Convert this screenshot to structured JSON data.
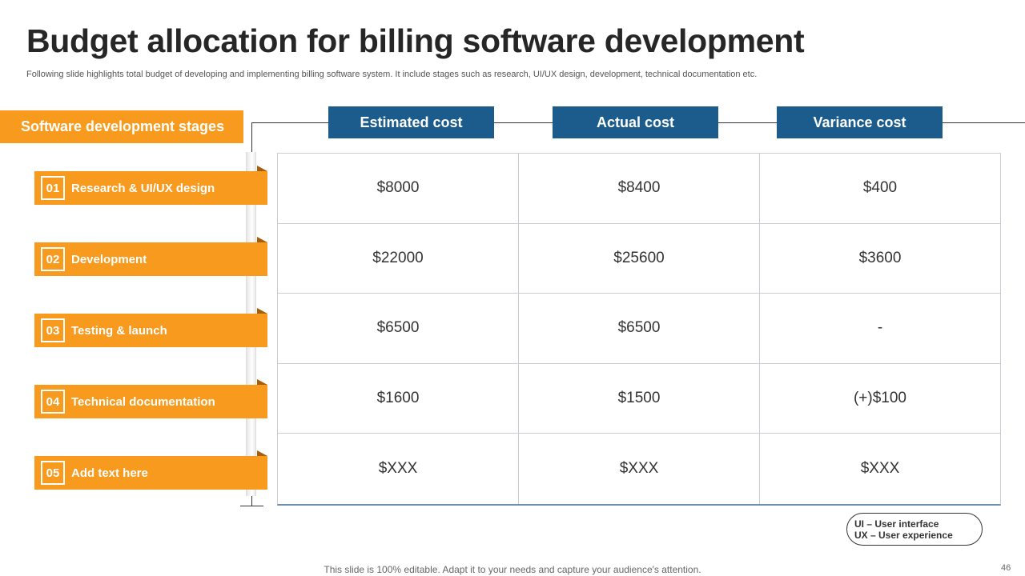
{
  "title": "Budget allocation for billing software development",
  "subtitle": "Following slide highlights total budget of developing and implementing billing software system. It include stages such as research, UI/UX design, development, technical documentation etc.",
  "stages_header": "Software development stages",
  "stages": [
    {
      "num": "01",
      "label": "Research & UI/UX design"
    },
    {
      "num": "02",
      "label": "Development"
    },
    {
      "num": "03",
      "label": "Testing & launch"
    },
    {
      "num": "04",
      "label": "Technical documentation"
    },
    {
      "num": "05",
      "label": "Add text here"
    }
  ],
  "columns": [
    "Estimated cost",
    "Actual cost",
    "Variance cost"
  ],
  "rows": [
    [
      "$8000",
      "$8400",
      "$400"
    ],
    [
      "$22000",
      "$25600",
      "$3600"
    ],
    [
      "$6500",
      "$6500",
      "-"
    ],
    [
      "$1600",
      "$1500",
      "(+)$100"
    ],
    [
      "$XXX",
      "$XXX",
      "$XXX"
    ]
  ],
  "legend": {
    "ui": "UI – User interface",
    "ux": "UX – User experience"
  },
  "footer": "This slide is 100% editable. Adapt it to your needs and capture your audience's attention.",
  "page_number": "46",
  "colors": {
    "accent_orange": "#f79a1e",
    "header_blue": "#1b5c8c"
  }
}
